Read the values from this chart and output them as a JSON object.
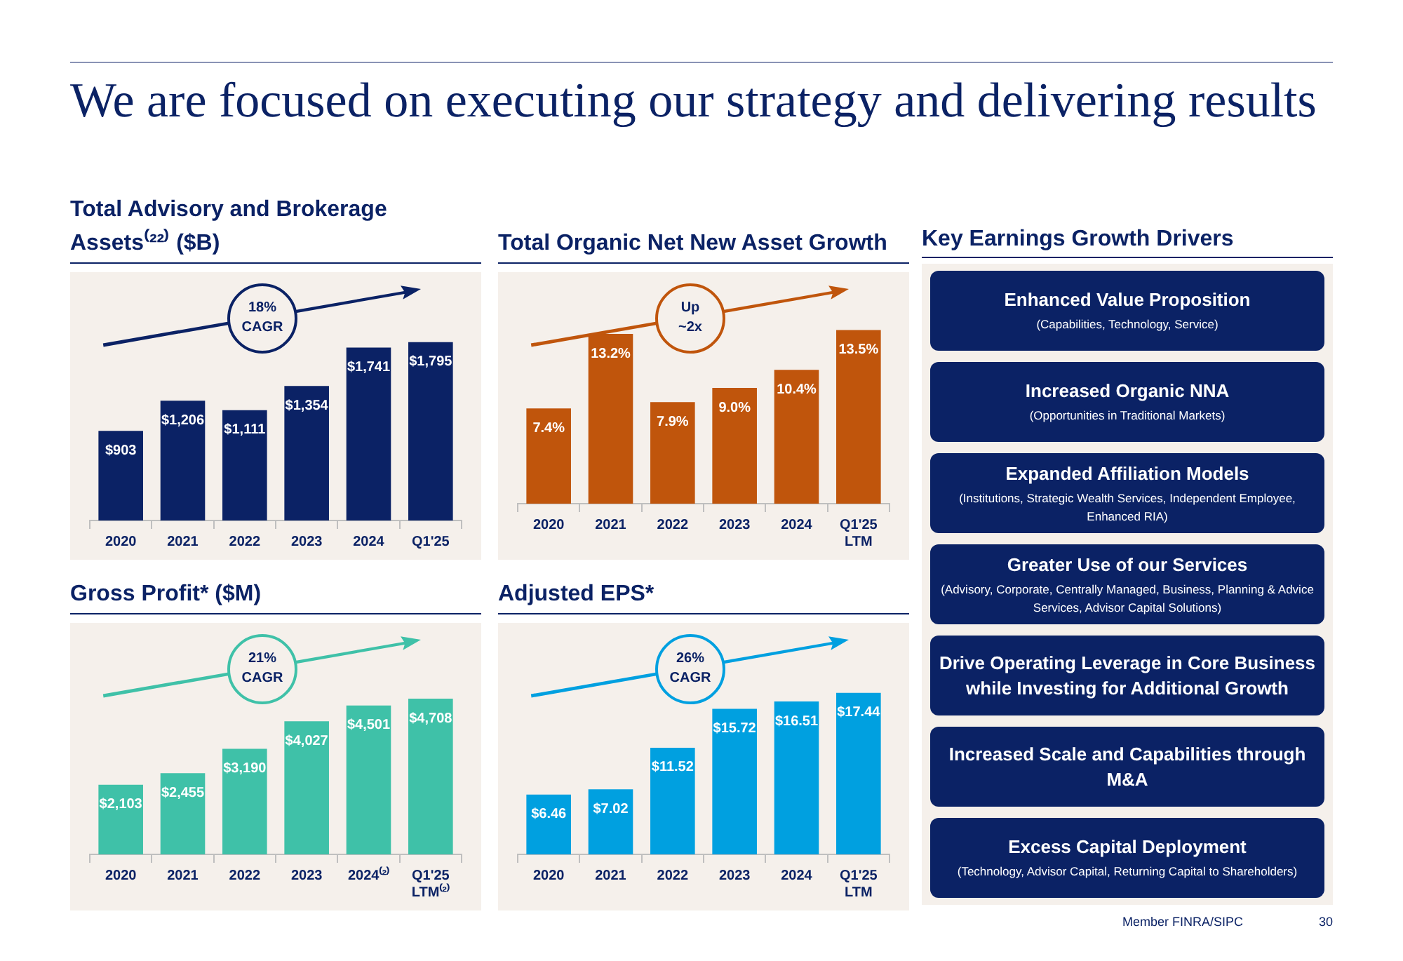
{
  "chart_data": [
    {
      "type": "bar",
      "title": "Total Advisory and Brokerage Assets⁽²²⁾ ($B)",
      "categories": [
        "2020",
        "2021",
        "2022",
        "2023",
        "2024",
        "Q1'25"
      ],
      "values": [
        903,
        1206,
        1111,
        1354,
        1741,
        1795
      ],
      "value_labels": [
        "$903",
        "$1,206",
        "$1,111",
        "$1,354",
        "$1,741",
        "$1,795"
      ],
      "color": "#0b2265",
      "annotations": [
        "18% CAGR"
      ]
    },
    {
      "type": "bar",
      "title": "Total Organic Net New Asset Growth",
      "categories": [
        "2020",
        "2021",
        "2022",
        "2023",
        "2024",
        "Q1'25 LTM"
      ],
      "values": [
        7.4,
        13.2,
        7.9,
        9.0,
        10.4,
        13.5
      ],
      "value_labels": [
        "7.4%",
        "13.2%",
        "7.9%",
        "9.0%",
        "10.4%",
        "13.5%"
      ],
      "color": "#c0550c",
      "annotations": [
        "Up ~2x"
      ]
    },
    {
      "type": "bar",
      "title": "Gross Profit* ($M)",
      "categories": [
        "2020",
        "2021",
        "2022",
        "2023",
        "2024⁽²⁾",
        "Q1'25 LTM⁽²⁾"
      ],
      "values": [
        2103,
        2455,
        3190,
        4027,
        4501,
        4708
      ],
      "value_labels": [
        "$2,103",
        "$2,455",
        "$3,190",
        "$4,027",
        "$4,501",
        "$4,708"
      ],
      "color": "#3fc1a8",
      "annotations": [
        "21% CAGR"
      ]
    },
    {
      "type": "bar",
      "title": "Adjusted EPS*",
      "categories": [
        "2020",
        "2021",
        "2022",
        "2023",
        "2024",
        "Q1'25 LTM"
      ],
      "values": [
        6.46,
        7.02,
        11.52,
        15.72,
        16.51,
        17.44
      ],
      "value_labels": [
        "$6.46",
        "$7.02",
        "$11.52",
        "$15.72",
        "$16.51",
        "$17.44"
      ],
      "color": "#00a0e0",
      "annotations": [
        "26% CAGR"
      ]
    },
    {
      "type": "other",
      "title": "Key Earnings Growth Drivers",
      "categories": [
        "Enhanced Value Proposition",
        "Increased Organic NNA",
        "Expanded Affiliation Models",
        "Greater Use of our Services",
        "Drive Operating Leverage in Core Business while Investing for Additional Growth",
        "Increased Scale and Capabilities through M&A",
        "Excess Capital Deployment"
      ],
      "value_labels": [
        "(Capabilities, Technology, Service)",
        "(Opportunities in Traditional Markets)",
        "(Institutions, Strategic Wealth Services, Independent Employee, Enhanced RIA)",
        "(Advisory, Corporate, Centrally Managed, Business, Planning & Advice Services, Advisor Capital Solutions)",
        null,
        null,
        "(Technology, Advisor Capital, Returning Capital to Shareholders)"
      ],
      "color": "#0b2265",
      "annotations": [
        "We are focused on executing our strategy and delivering results",
        "Member FINRA/SIPC",
        "30"
      ]
    }
  ]
}
